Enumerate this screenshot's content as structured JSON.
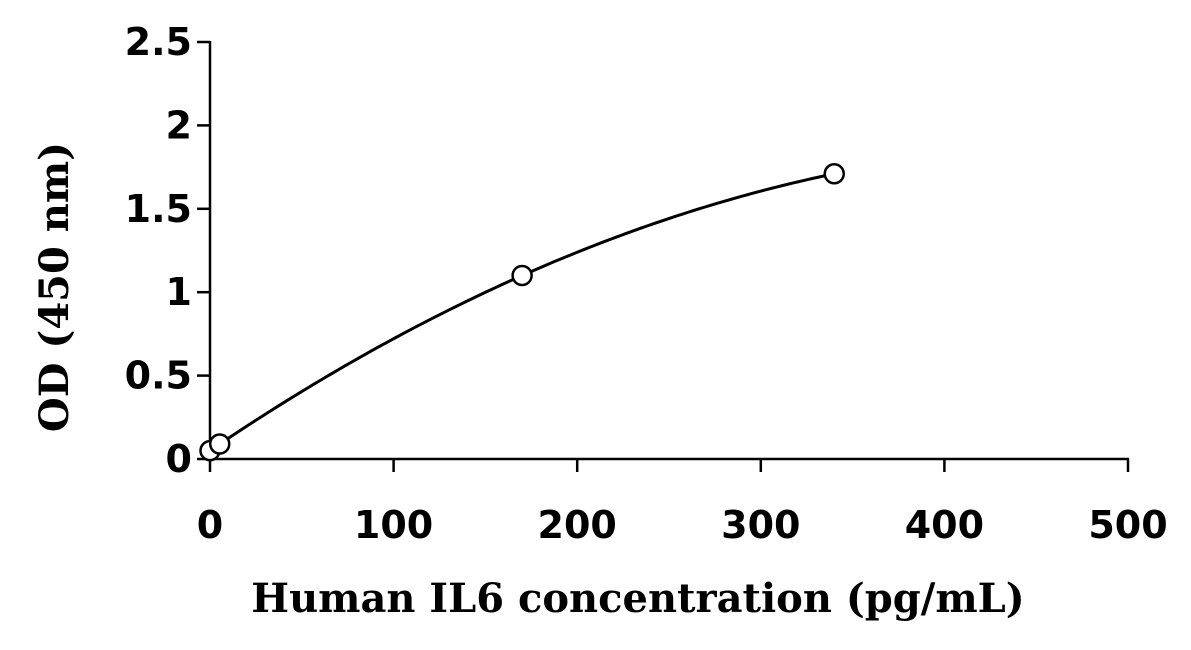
{
  "chart_data": {
    "type": "scatter",
    "title": "",
    "xlabel": "Human IL6 concentration (pg/mL)",
    "ylabel": "OD (450 nm)",
    "xlim": [
      0,
      500
    ],
    "ylim": [
      0,
      2.5
    ],
    "x_ticks": [
      0,
      100,
      200,
      300,
      400,
      500
    ],
    "x_tick_labels": [
      "0",
      "100",
      "200",
      "300",
      "400",
      "500"
    ],
    "y_ticks": [
      0,
      0.5,
      1,
      1.5,
      2,
      2.5
    ],
    "y_tick_labels": [
      "0",
      "0.5",
      "1",
      "1.5",
      "2",
      "2.5"
    ],
    "grid": false,
    "legend": "none",
    "series": [
      {
        "marker": "open-circle",
        "fit_line": "smooth-curve",
        "x": [
          0,
          5.3,
          170,
          340
        ],
        "y": [
          0.05,
          0.09,
          1.1,
          1.71
        ]
      }
    ],
    "colors": {
      "axis": "#000000",
      "marker": "#000000",
      "line": "#000000"
    }
  }
}
